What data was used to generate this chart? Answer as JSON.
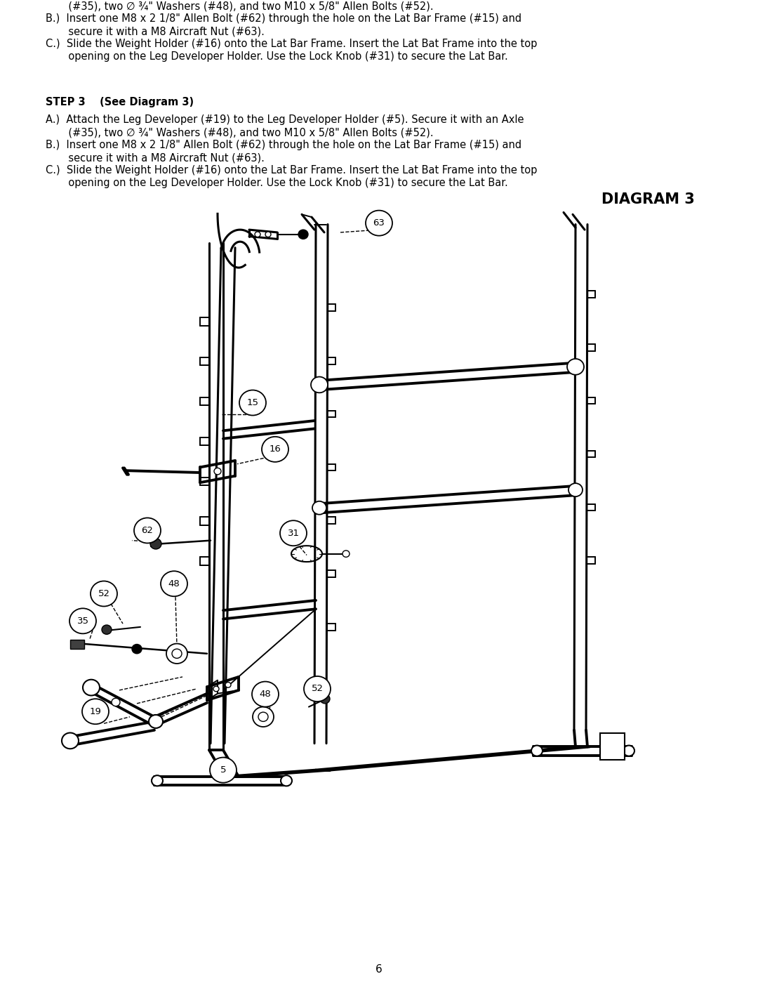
{
  "page_background": "#ffffff",
  "title_step": "STEP 3    (See Diagram 3)",
  "diagram_title": "DIAGRAM 3",
  "line_A1": "A.)  Attach the Leg Developer (#19) to the Leg Developer Holder (#5). Secure it with an Axle",
  "line_A2": "       (#35), two ∅ ¾\" Washers (#48), and two M10 x 5/8\" Allen Bolts (#52).",
  "line_B1": "B.)  Insert one M8 x 2 1/8\" Allen Bolt (#62) through the hole on the Lat Bar Frame (#15) and",
  "line_B2": "       secure it with a M8 Aircraft Nut (#63).",
  "line_C1": "C.)  Slide the Weight Holder (#16) onto the Lat Bar Frame. Insert the Lat Bat Frame into the top",
  "line_C2": "       opening on the Leg Developer Holder. Use the Lock Knob (#31) to secure the Lat Bar.",
  "page_number": "6"
}
